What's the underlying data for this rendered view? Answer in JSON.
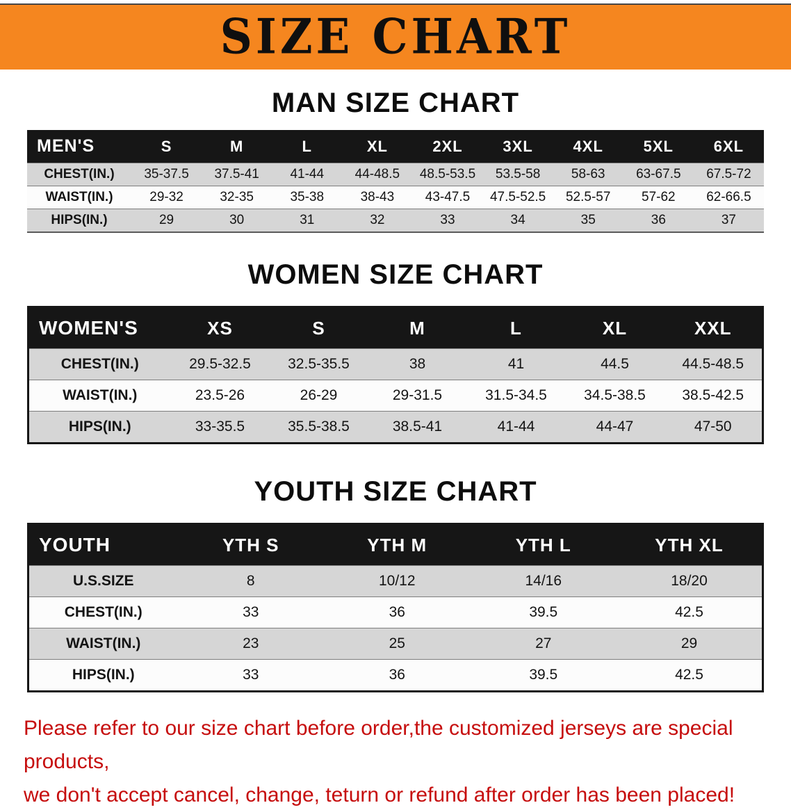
{
  "banner": {
    "title": "SIZE CHART",
    "bg_color": "#f5861f"
  },
  "colors": {
    "header_row_bg": "#161616",
    "alt_row_bg": "#d6d6d6",
    "disclaimer_text": "#c60d0d"
  },
  "sections": {
    "men": {
      "heading": "MAN SIZE CHART",
      "table": {
        "header": [
          "MEN'S",
          "S",
          "M",
          "L",
          "XL",
          "2XL",
          "3XL",
          "4XL",
          "5XL",
          "6XL"
        ],
        "rows": [
          [
            "CHEST(IN.)",
            "35-37.5",
            "37.5-41",
            "41-44",
            "44-48.5",
            "48.5-53.5",
            "53.5-58",
            "58-63",
            "63-67.5",
            "67.5-72"
          ],
          [
            "WAIST(IN.)",
            "29-32",
            "32-35",
            "35-38",
            "38-43",
            "43-47.5",
            "47.5-52.5",
            "52.5-57",
            "57-62",
            "62-66.5"
          ],
          [
            "HIPS(IN.)",
            "29",
            "30",
            "31",
            "32",
            "33",
            "34",
            "35",
            "36",
            "37"
          ]
        ]
      }
    },
    "women": {
      "heading": "WOMEN SIZE CHART",
      "table": {
        "header": [
          "WOMEN'S",
          "XS",
          "S",
          "M",
          "L",
          "XL",
          "XXL"
        ],
        "rows": [
          [
            "CHEST(IN.)",
            "29.5-32.5",
            "32.5-35.5",
            "38",
            "41",
            "44.5",
            "44.5-48.5"
          ],
          [
            "WAIST(IN.)",
            "23.5-26",
            "26-29",
            "29-31.5",
            "31.5-34.5",
            "34.5-38.5",
            "38.5-42.5"
          ],
          [
            "HIPS(IN.)",
            "33-35.5",
            "35.5-38.5",
            "38.5-41",
            "41-44",
            "44-47",
            "47-50"
          ]
        ]
      }
    },
    "youth": {
      "heading": "YOUTH SIZE CHART",
      "table": {
        "header": [
          "YOUTH",
          "YTH S",
          "YTH M",
          "YTH L",
          "YTH XL"
        ],
        "rows": [
          [
            "U.S.SIZE",
            "8",
            "10/12",
            "14/16",
            "18/20"
          ],
          [
            "CHEST(IN.)",
            "33",
            "36",
            "39.5",
            "42.5"
          ],
          [
            "WAIST(IN.)",
            "23",
            "25",
            "27",
            "29"
          ],
          [
            "HIPS(IN.)",
            "33",
            "36",
            "39.5",
            "42.5"
          ]
        ]
      }
    }
  },
  "disclaimer": {
    "line1": "Please refer to our size chart before order,the customized jerseys are special products,",
    "line2": "we don't accept cancel, change, teturn or refund after order has been placed!"
  }
}
